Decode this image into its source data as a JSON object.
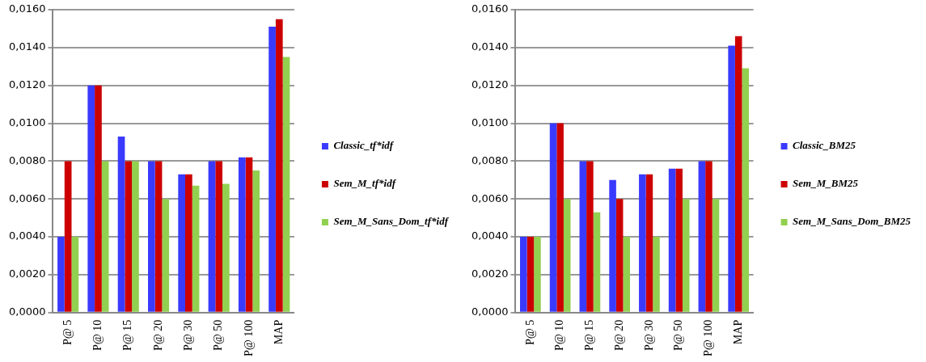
{
  "chart_data": [
    {
      "type": "bar",
      "categories": [
        "P@ 5",
        "P@ 10",
        "P@ 15",
        "P@ 20",
        "P@ 30",
        "P@ 50",
        "P@ 100",
        "MAP"
      ],
      "series": [
        {
          "name": "Classic_tf*idf",
          "color": "#3a3aff",
          "values": [
            0.004,
            0.012,
            0.0093,
            0.008,
            0.0073,
            0.008,
            0.0082,
            0.0151
          ]
        },
        {
          "name": "Sem_M_tf*idf",
          "color": "#cc0000",
          "values": [
            0.008,
            0.012,
            0.008,
            0.008,
            0.0073,
            0.008,
            0.0082,
            0.0155
          ]
        },
        {
          "name": "Sem_M_Sans_Dom_tf*idf",
          "color": "#92d050",
          "values": [
            0.004,
            0.008,
            0.008,
            0.006,
            0.0067,
            0.0068,
            0.0075,
            0.0135
          ]
        }
      ],
      "ylim": [
        0,
        0.016
      ],
      "yticks": [
        {
          "value": 0,
          "label": "0,0000"
        },
        {
          "value": 0.002,
          "label": "0,0020"
        },
        {
          "value": 0.004,
          "label": "0,0040"
        },
        {
          "value": 0.006,
          "label": "0,0060"
        },
        {
          "value": 0.008,
          "label": "0,0080"
        },
        {
          "value": 0.01,
          "label": "0,0100"
        },
        {
          "value": 0.012,
          "label": "0,0120"
        },
        {
          "value": 0.014,
          "label": "0,0140"
        },
        {
          "value": 0.016,
          "label": "0,0160"
        }
      ],
      "grid": "y",
      "legend": "right"
    },
    {
      "type": "bar",
      "categories": [
        "P@ 5",
        "P@ 10",
        "P@ 15",
        "P@ 20",
        "P@ 30",
        "P@ 50",
        "P@ 100",
        "MAP"
      ],
      "series": [
        {
          "name": "Classic_BM25",
          "color": "#3a3aff",
          "values": [
            0.004,
            0.01,
            0.008,
            0.007,
            0.0073,
            0.0076,
            0.008,
            0.0141
          ]
        },
        {
          "name": "Sem_M_BM25",
          "color": "#cc0000",
          "values": [
            0.004,
            0.01,
            0.008,
            0.006,
            0.0073,
            0.0076,
            0.008,
            0.0146
          ]
        },
        {
          "name": "Sem_M_Sans_Dom_BM25",
          "color": "#92d050",
          "values": [
            0.004,
            0.006,
            0.0053,
            0.004,
            0.004,
            0.006,
            0.006,
            0.0129
          ]
        }
      ],
      "ylim": [
        0,
        0.016
      ],
      "yticks": [
        {
          "value": 0,
          "label": "0,0000"
        },
        {
          "value": 0.002,
          "label": "0,0020"
        },
        {
          "value": 0.004,
          "label": "0,0040"
        },
        {
          "value": 0.006,
          "label": "0,0060"
        },
        {
          "value": 0.008,
          "label": "0,0080"
        },
        {
          "value": 0.01,
          "label": "0,0100"
        },
        {
          "value": 0.012,
          "label": "0,0120"
        },
        {
          "value": 0.014,
          "label": "0,0140"
        },
        {
          "value": 0.016,
          "label": "0,0160"
        }
      ],
      "grid": "y",
      "legend": "right"
    }
  ]
}
